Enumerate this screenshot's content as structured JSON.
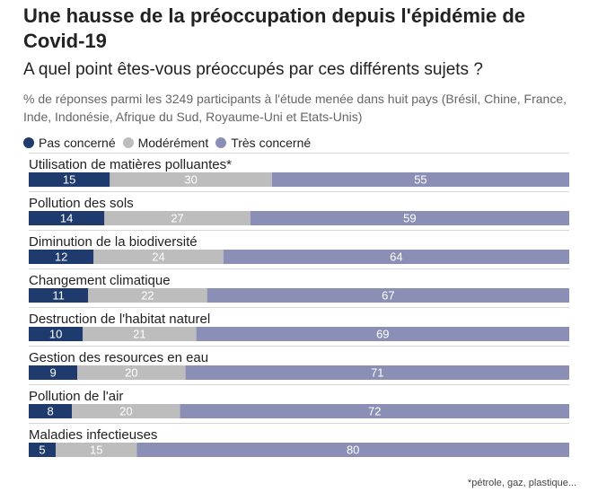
{
  "title": "Une hausse de la préoccupation depuis l'épidémie de Covid-19",
  "subtitle": "A quel point êtes-vous préoccupés par ces différents sujets ?",
  "note": "% de réponses parmi les 3249 participants à l'étude menée dans huit pays (Brésil, Chine, France, Inde, Indonésie, Afrique du Sud, Royaume-Uni et Etats-Unis)",
  "footnote": "*pétrole, gaz, plastique...",
  "legend": [
    {
      "label": "Pas concerné",
      "color": "#1f3b6e"
    },
    {
      "label": "Modérément",
      "color": "#bdbdbd"
    },
    {
      "label": "Très concerné",
      "color": "#8c8fb5"
    }
  ],
  "chart_data": {
    "type": "bar",
    "orientation": "horizontal",
    "stacked": true,
    "unit": "%",
    "categories": [
      "Utilisation de matières polluantes*",
      "Pollution des sols",
      "Diminution de la biodiversité",
      "Changement climatique",
      "Destruction de l'habitat naturel",
      "Gestion des resources en eau",
      "Pollution de l'air",
      "Maladies infectieuses"
    ],
    "series": [
      {
        "name": "Pas concerné",
        "color": "#1f3b6e",
        "values": [
          15,
          14,
          12,
          11,
          10,
          9,
          8,
          5
        ]
      },
      {
        "name": "Modérément",
        "color": "#bdbdbd",
        "values": [
          30,
          27,
          24,
          22,
          21,
          20,
          20,
          15
        ]
      },
      {
        "name": "Très concerné",
        "color": "#8c8fb5",
        "values": [
          55,
          59,
          64,
          67,
          69,
          71,
          72,
          80
        ]
      }
    ],
    "xlim": [
      0,
      100
    ],
    "grid": false,
    "legend_position": "top-left"
  }
}
